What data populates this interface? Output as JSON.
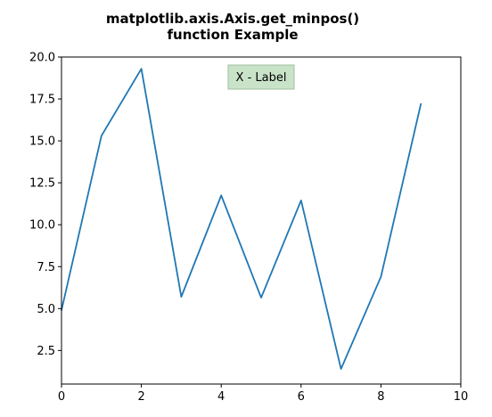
{
  "chart_data": {
    "type": "line",
    "title_lines": [
      "matplotlib.axis.Axis.get_minpos()",
      "function Example"
    ],
    "xlabel": "",
    "ylabel": "",
    "xlim": [
      0,
      10
    ],
    "ylim": [
      0.5,
      20.0
    ],
    "x_ticks": [
      0,
      2,
      4,
      6,
      8,
      10
    ],
    "x_tick_labels": [
      "0",
      "2",
      "4",
      "6",
      "8",
      "10"
    ],
    "y_ticks": [
      2.5,
      5.0,
      7.5,
      10.0,
      12.5,
      15.0,
      17.5,
      20.0
    ],
    "y_tick_labels": [
      "2.5",
      "5.0",
      "7.5",
      "10.0",
      "12.5",
      "15.0",
      "17.5",
      "20.0"
    ],
    "grid": false,
    "series": [
      {
        "x": [
          0,
          1,
          2,
          3,
          4,
          5,
          6,
          7,
          8,
          9
        ],
        "values": [
          4.9,
          15.3,
          19.3,
          5.7,
          11.75,
          5.65,
          11.45,
          1.4,
          6.9,
          17.2
        ],
        "color": "#1f77b4"
      }
    ],
    "annotation": {
      "text": "X - Label",
      "background": "#c9e3c9",
      "border": "#9fbf9f"
    }
  }
}
